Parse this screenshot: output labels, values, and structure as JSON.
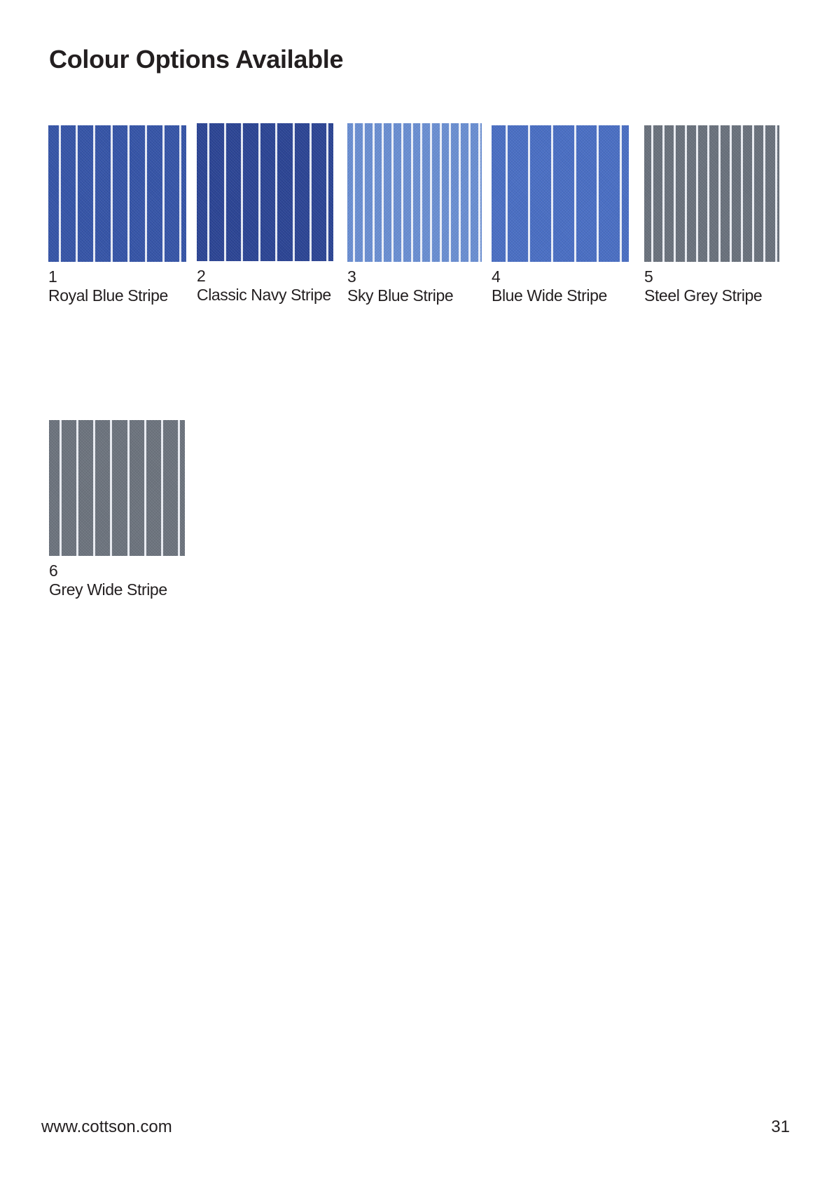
{
  "page": {
    "title": "Colour Options Available",
    "footer_url": "www.cottson.com",
    "page_number": "31"
  },
  "swatches": [
    {
      "number": "1",
      "name": "Royal Blue Stripe",
      "base_color": "#3655a8",
      "stripe_color": "#f2f4fa"
    },
    {
      "number": "2",
      "name": "Classic Navy Stripe",
      "base_color": "#2c4595",
      "stripe_color": "#f2f4fa"
    },
    {
      "number": "3",
      "name": "Sky Blue Stripe",
      "base_color": "#6a8fd3",
      "stripe_color": "#f2f4fa"
    },
    {
      "number": "4",
      "name": "Blue Wide Stripe",
      "base_color": "#4a6fc4",
      "stripe_color": "#f2f4fa"
    },
    {
      "number": "5",
      "name": "Steel Grey Stripe",
      "base_color": "#6a727d",
      "stripe_color": "#f2f4fa"
    },
    {
      "number": "6",
      "name": "Grey Wide Stripe",
      "base_color": "#6d747e",
      "stripe_color": "#f2f4fa"
    }
  ]
}
